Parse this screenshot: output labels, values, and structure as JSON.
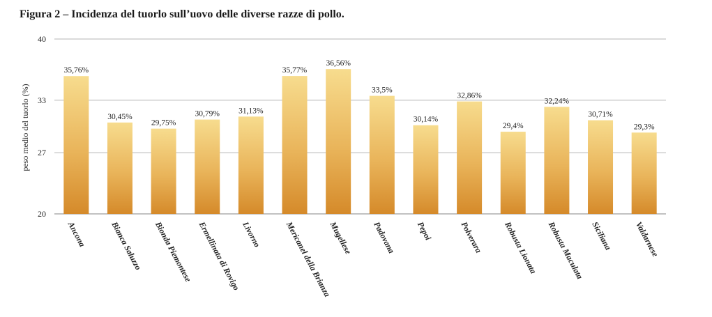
{
  "caption": "Figura 2 – Incidenza del tuorlo sull’uovo delle diverse razze di pollo.",
  "chart_data": {
    "type": "bar",
    "title": "",
    "xlabel": "",
    "ylabel": "peso medio del tuorlo (%)",
    "ylim": [
      20,
      40
    ],
    "yticks": [
      20,
      27,
      33,
      40
    ],
    "grid": true,
    "categories": [
      "Ancona",
      "Bianca Saluzzo",
      "Bionda Piemontese",
      "Ermellinata di Rovigo",
      "Livorno",
      "Mericanel della Brianza",
      "Mugellese",
      "Padovana",
      "Pepoi",
      "Polverara",
      "Robusta Lionata",
      "Robusta Maculata",
      "Siciliana",
      "Valdarnese"
    ],
    "values": [
      35.76,
      30.45,
      29.75,
      30.79,
      31.13,
      35.77,
      36.56,
      33.5,
      30.14,
      32.86,
      29.4,
      32.24,
      30.71,
      29.3
    ],
    "data_labels": [
      "35,76%",
      "30,45%",
      "29,75%",
      "30,79%",
      "31,13%",
      "35,77%",
      "36,56%",
      "33,5%",
      "30,14%",
      "32,86%",
      "29,4%",
      "32,24%",
      "30,71%",
      "29,3%"
    ],
    "bar_color_top": "#f7dc8e",
    "bar_color_bottom": "#d58a2a",
    "grid_color": "#9e9e9e"
  }
}
